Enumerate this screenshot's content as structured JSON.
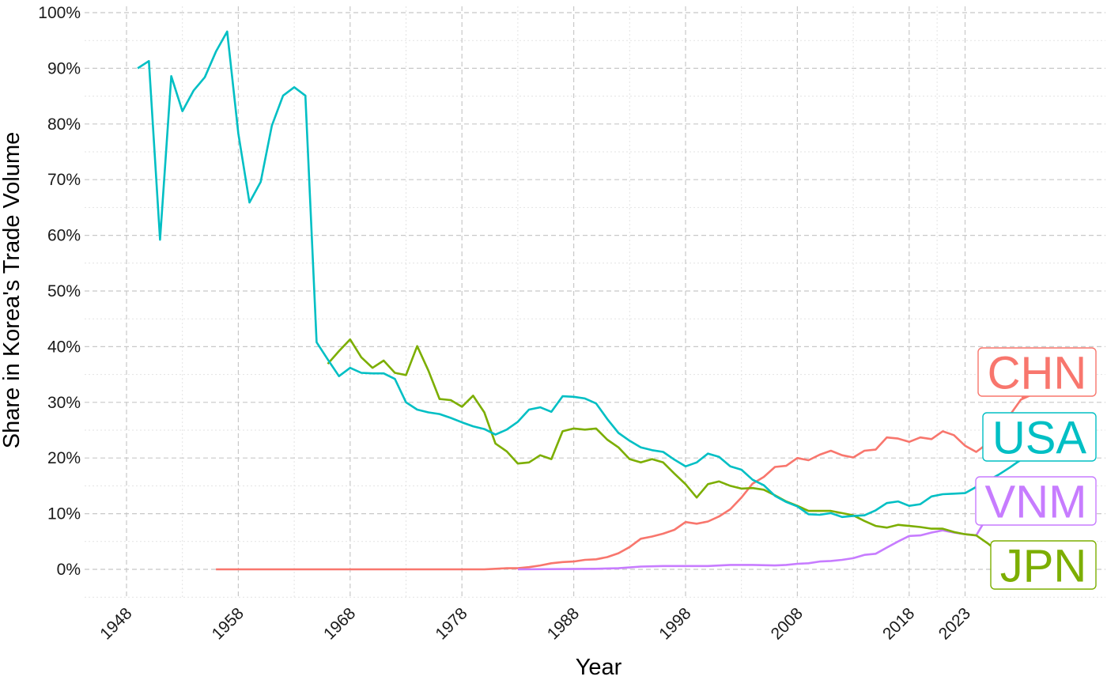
{
  "chart_data": {
    "type": "line",
    "title": "",
    "xlabel": "Year",
    "ylabel": "Share in Korea's Trade Volume",
    "xlim": [
      1948,
      2030
    ],
    "ylim": [
      -0.05,
      1.0
    ],
    "x_ticks": [
      1948,
      1958,
      1968,
      1978,
      1988,
      1998,
      2008,
      2018,
      2023
    ],
    "x_tick_labels": [
      "1948",
      "1958",
      "1968",
      "1978",
      "1988",
      "1998",
      "2008",
      "2018",
      "2023"
    ],
    "y_ticks": [
      0,
      0.1,
      0.2,
      0.3,
      0.4,
      0.5,
      0.6,
      0.7,
      0.8,
      0.9,
      1.0
    ],
    "y_tick_labels": [
      "0%",
      "10%",
      "20%",
      "30%",
      "40%",
      "50%",
      "60%",
      "70%",
      "80%",
      "90%",
      "100%"
    ],
    "grid": true,
    "legend": "none (direct end labels)",
    "series": [
      {
        "name": "USA",
        "color": "#00BFC4",
        "points": [
          [
            1949,
            0.9
          ],
          [
            1950,
            0.913
          ],
          [
            1951,
            0.592
          ],
          [
            1952,
            0.886
          ],
          [
            1953,
            0.823
          ],
          [
            1954,
            0.86
          ],
          [
            1955,
            0.884
          ],
          [
            1956,
            0.93
          ],
          [
            1957,
            0.966
          ],
          [
            1958,
            0.783
          ],
          [
            1959,
            0.659
          ],
          [
            1960,
            0.696
          ],
          [
            1961,
            0.797
          ],
          [
            1962,
            0.851
          ],
          [
            1963,
            0.866
          ],
          [
            1964,
            0.851
          ],
          [
            1965,
            0.408
          ],
          [
            1966,
            0.377
          ],
          [
            1967,
            0.347
          ],
          [
            1968,
            0.362
          ],
          [
            1969,
            0.353
          ],
          [
            1970,
            0.352
          ],
          [
            1971,
            0.352
          ],
          [
            1972,
            0.342
          ],
          [
            1973,
            0.3
          ],
          [
            1974,
            0.287
          ],
          [
            1975,
            0.282
          ],
          [
            1976,
            0.279
          ],
          [
            1977,
            0.272
          ],
          [
            1978,
            0.264
          ],
          [
            1979,
            0.257
          ],
          [
            1980,
            0.252
          ],
          [
            1981,
            0.242
          ],
          [
            1982,
            0.251
          ],
          [
            1983,
            0.265
          ],
          [
            1984,
            0.287
          ],
          [
            1985,
            0.291
          ],
          [
            1986,
            0.283
          ],
          [
            1987,
            0.311
          ],
          [
            1988,
            0.31
          ],
          [
            1989,
            0.307
          ],
          [
            1990,
            0.298
          ],
          [
            1991,
            0.27
          ],
          [
            1992,
            0.245
          ],
          [
            1993,
            0.231
          ],
          [
            1994,
            0.219
          ],
          [
            1995,
            0.214
          ],
          [
            1996,
            0.211
          ],
          [
            1997,
            0.197
          ],
          [
            1998,
            0.185
          ],
          [
            1999,
            0.192
          ],
          [
            2000,
            0.208
          ],
          [
            2001,
            0.202
          ],
          [
            2002,
            0.185
          ],
          [
            2003,
            0.179
          ],
          [
            2004,
            0.161
          ],
          [
            2005,
            0.151
          ],
          [
            2006,
            0.132
          ],
          [
            2007,
            0.121
          ],
          [
            2008,
            0.113
          ],
          [
            2009,
            0.099
          ],
          [
            2010,
            0.098
          ],
          [
            2011,
            0.101
          ],
          [
            2012,
            0.094
          ],
          [
            2013,
            0.096
          ],
          [
            2014,
            0.097
          ],
          [
            2015,
            0.106
          ],
          [
            2016,
            0.119
          ],
          [
            2017,
            0.122
          ],
          [
            2018,
            0.114
          ],
          [
            2019,
            0.117
          ],
          [
            2020,
            0.131
          ],
          [
            2021,
            0.135
          ],
          [
            2022,
            0.136
          ],
          [
            2023,
            0.137
          ],
          [
            2024,
            0.148
          ],
          [
            2025,
            0.159
          ],
          [
            2026,
            0.17
          ],
          [
            2027,
            0.183
          ],
          [
            2028,
            0.197
          ]
        ]
      },
      {
        "name": "JPN",
        "color": "#7CAE00",
        "points": [
          [
            1966,
            0.369
          ],
          [
            1967,
            0.392
          ],
          [
            1968,
            0.413
          ],
          [
            1969,
            0.381
          ],
          [
            1970,
            0.362
          ],
          [
            1971,
            0.375
          ],
          [
            1972,
            0.353
          ],
          [
            1973,
            0.349
          ],
          [
            1974,
            0.401
          ],
          [
            1975,
            0.357
          ],
          [
            1976,
            0.306
          ],
          [
            1977,
            0.304
          ],
          [
            1978,
            0.292
          ],
          [
            1979,
            0.312
          ],
          [
            1980,
            0.282
          ],
          [
            1981,
            0.226
          ],
          [
            1982,
            0.212
          ],
          [
            1983,
            0.19
          ],
          [
            1984,
            0.192
          ],
          [
            1985,
            0.205
          ],
          [
            1986,
            0.198
          ],
          [
            1987,
            0.248
          ],
          [
            1988,
            0.253
          ],
          [
            1989,
            0.251
          ],
          [
            1990,
            0.253
          ],
          [
            1991,
            0.233
          ],
          [
            1992,
            0.219
          ],
          [
            1993,
            0.198
          ],
          [
            1994,
            0.192
          ],
          [
            1995,
            0.198
          ],
          [
            1996,
            0.192
          ],
          [
            1997,
            0.172
          ],
          [
            1998,
            0.153
          ],
          [
            1999,
            0.129
          ],
          [
            2000,
            0.153
          ],
          [
            2001,
            0.158
          ],
          [
            2002,
            0.15
          ],
          [
            2003,
            0.145
          ],
          [
            2004,
            0.146
          ],
          [
            2005,
            0.143
          ],
          [
            2006,
            0.133
          ],
          [
            2007,
            0.122
          ],
          [
            2008,
            0.114
          ],
          [
            2009,
            0.105
          ],
          [
            2010,
            0.105
          ],
          [
            2011,
            0.105
          ],
          [
            2012,
            0.101
          ],
          [
            2013,
            0.097
          ],
          [
            2014,
            0.087
          ],
          [
            2015,
            0.078
          ],
          [
            2016,
            0.075
          ],
          [
            2017,
            0.08
          ],
          [
            2018,
            0.078
          ],
          [
            2019,
            0.076
          ],
          [
            2020,
            0.073
          ],
          [
            2021,
            0.073
          ],
          [
            2022,
            0.067
          ],
          [
            2023,
            0.063
          ],
          [
            2024,
            0.061
          ],
          [
            2025,
            0.047
          ],
          [
            2026,
            0.031
          ]
        ]
      },
      {
        "name": "CHN",
        "color": "#F8766D",
        "points": [
          [
            1956,
            0.0
          ],
          [
            1960,
            0.0
          ],
          [
            1970,
            0.0
          ],
          [
            1980,
            0.0
          ],
          [
            1981,
            0.001
          ],
          [
            1982,
            0.002
          ],
          [
            1983,
            0.002
          ],
          [
            1984,
            0.004
          ],
          [
            1985,
            0.007
          ],
          [
            1986,
            0.011
          ],
          [
            1987,
            0.013
          ],
          [
            1988,
            0.014
          ],
          [
            1989,
            0.017
          ],
          [
            1990,
            0.018
          ],
          [
            1991,
            0.022
          ],
          [
            1992,
            0.029
          ],
          [
            1993,
            0.04
          ],
          [
            1994,
            0.055
          ],
          [
            1995,
            0.059
          ],
          [
            1996,
            0.064
          ],
          [
            1997,
            0.071
          ],
          [
            1998,
            0.085
          ],
          [
            1999,
            0.082
          ],
          [
            2000,
            0.086
          ],
          [
            2001,
            0.095
          ],
          [
            2002,
            0.108
          ],
          [
            2003,
            0.129
          ],
          [
            2004,
            0.154
          ],
          [
            2005,
            0.166
          ],
          [
            2006,
            0.184
          ],
          [
            2007,
            0.186
          ],
          [
            2008,
            0.2
          ],
          [
            2009,
            0.196
          ],
          [
            2010,
            0.206
          ],
          [
            2011,
            0.213
          ],
          [
            2012,
            0.205
          ],
          [
            2013,
            0.201
          ],
          [
            2014,
            0.213
          ],
          [
            2015,
            0.215
          ],
          [
            2016,
            0.237
          ],
          [
            2017,
            0.235
          ],
          [
            2018,
            0.229
          ],
          [
            2019,
            0.237
          ],
          [
            2020,
            0.234
          ],
          [
            2021,
            0.248
          ],
          [
            2022,
            0.241
          ],
          [
            2023,
            0.222
          ],
          [
            2024,
            0.211
          ],
          [
            2025,
            0.226
          ],
          [
            2026,
            0.25
          ],
          [
            2027,
            0.277
          ],
          [
            2028,
            0.305
          ],
          [
            2029,
            0.314
          ]
        ]
      },
      {
        "name": "VNM",
        "color": "#C77CFF",
        "points": [
          [
            1983,
            0.0
          ],
          [
            1990,
            0.001
          ],
          [
            1992,
            0.002
          ],
          [
            1994,
            0.005
          ],
          [
            1996,
            0.006
          ],
          [
            1998,
            0.006
          ],
          [
            2000,
            0.006
          ],
          [
            2002,
            0.008
          ],
          [
            2004,
            0.008
          ],
          [
            2006,
            0.007
          ],
          [
            2007,
            0.008
          ],
          [
            2008,
            0.01
          ],
          [
            2009,
            0.011
          ],
          [
            2010,
            0.014
          ],
          [
            2011,
            0.015
          ],
          [
            2012,
            0.017
          ],
          [
            2013,
            0.02
          ],
          [
            2014,
            0.026
          ],
          [
            2015,
            0.028
          ],
          [
            2016,
            0.039
          ],
          [
            2017,
            0.05
          ],
          [
            2018,
            0.06
          ],
          [
            2019,
            0.061
          ],
          [
            2020,
            0.066
          ],
          [
            2021,
            0.07
          ],
          [
            2022,
            0.066
          ],
          [
            2023,
            0.063
          ],
          [
            2024,
            0.061
          ],
          [
            2025,
            0.095
          ],
          [
            2026,
            0.097
          ]
        ]
      }
    ],
    "end_labels": [
      {
        "text": "CHN",
        "color": "#F8766D"
      },
      {
        "text": "USA",
        "color": "#00BFC4"
      },
      {
        "text": "VNM",
        "color": "#C77CFF"
      },
      {
        "text": "JPN",
        "color": "#7CAE00"
      }
    ]
  }
}
